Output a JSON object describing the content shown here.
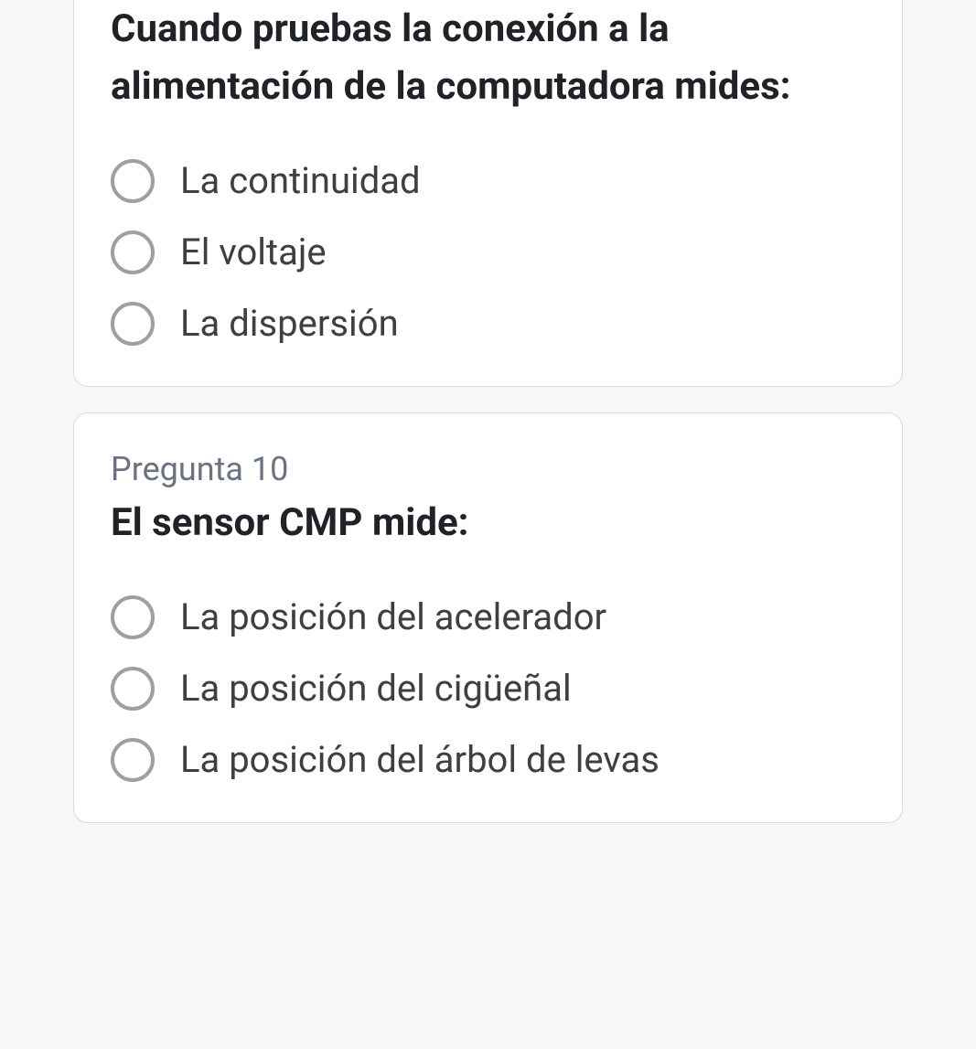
{
  "colors": {
    "page_bg": "#f6f7f8",
    "card_bg": "#ffffff",
    "card_border": "#d7dbe0",
    "label_text": "#6b7280",
    "title_text": "#1f2328",
    "option_text": "#3c4043",
    "radio_border": "#9aa0a6"
  },
  "typography": {
    "label_fontsize": 36,
    "title_fontsize": 42,
    "title_weight": 700,
    "option_fontsize": 40
  },
  "layout": {
    "card_radius": 16,
    "radio_diameter": 48,
    "radio_border_width": 4
  },
  "questions": [
    {
      "label": "",
      "title": "Cuando pruebas la conexión a la alimentación de la computadora mides:",
      "options": [
        "La continuidad",
        "El voltaje",
        "La dispersión"
      ]
    },
    {
      "label": "Pregunta 10",
      "title": "El sensor CMP mide:",
      "options": [
        "La posición del acelerador",
        "La posición del cigüeñal",
        "La posición del árbol de levas"
      ]
    }
  ]
}
